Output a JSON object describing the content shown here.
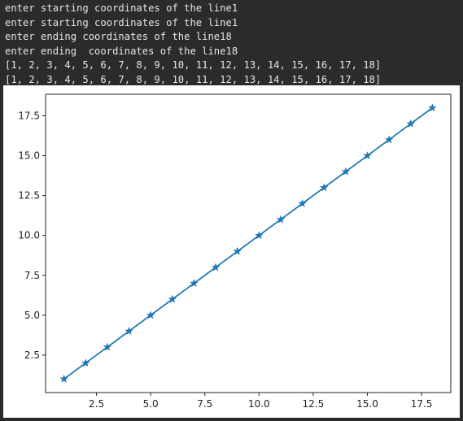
{
  "console": {
    "lines": [
      "enter starting coordinates of the line1",
      "enter starting coordinates of the line1",
      "enter ending coordinates of the line18",
      "enter ending  coordinates of the line18",
      "[1, 2, 3, 4, 5, 6, 7, 8, 9, 10, 11, 12, 13, 14, 15, 16, 17, 18]",
      "[1, 2, 3, 4, 5, 6, 7, 8, 9, 10, 11, 12, 13, 14, 15, 16, 17, 18]"
    ]
  },
  "colors": {
    "background": "#2b2b2b",
    "console_text": "#e6e6e6",
    "line": "#1f77b4"
  },
  "chart_data": {
    "type": "line",
    "marker": "star",
    "title": "",
    "xlabel": "",
    "ylabel": "",
    "x": [
      1,
      2,
      3,
      4,
      5,
      6,
      7,
      8,
      9,
      10,
      11,
      12,
      13,
      14,
      15,
      16,
      17,
      18
    ],
    "series": [
      {
        "values": [
          1,
          2,
          3,
          4,
          5,
          6,
          7,
          8,
          9,
          10,
          11,
          12,
          13,
          14,
          15,
          16,
          17,
          18
        ]
      }
    ],
    "xlim": [
      0.15,
      18.85
    ],
    "ylim": [
      0.15,
      18.85
    ],
    "xticks": [
      "2.5",
      "5.0",
      "7.5",
      "10.0",
      "12.5",
      "15.0",
      "17.5"
    ],
    "yticks": [
      "2.5",
      "5.0",
      "7.5",
      "10.0",
      "12.5",
      "15.0",
      "17.5"
    ],
    "grid": false
  }
}
